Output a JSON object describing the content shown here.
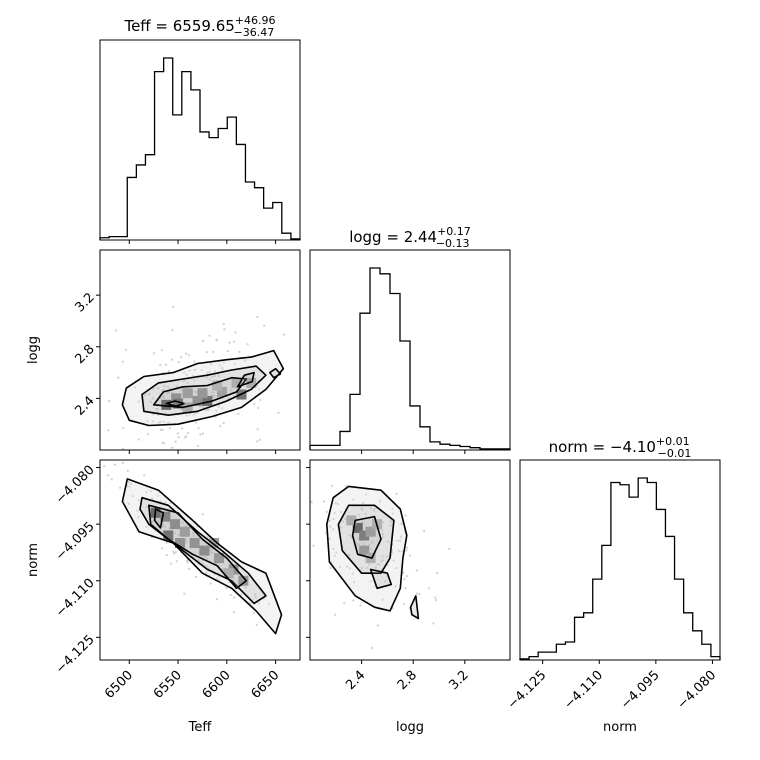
{
  "chart_data": {
    "type": "corner",
    "parameters": [
      {
        "name": "Teff",
        "label": "Teff",
        "median": "6559.65",
        "plus": "+46.96",
        "minus": "−36.47",
        "range": [
          6470,
          6675
        ],
        "ticks": [
          6500,
          6550,
          6600,
          6650
        ],
        "tick_labels": [
          "6500",
          "6550",
          "6600",
          "6650"
        ]
      },
      {
        "name": "logg",
        "label": "logg",
        "median": "2.44",
        "plus": "+0.17",
        "minus": "−0.13",
        "range": [
          2.0,
          3.55
        ],
        "ticks": [
          2.4,
          2.8,
          3.2
        ],
        "tick_labels": [
          "2.4",
          "2.8",
          "3.2"
        ]
      },
      {
        "name": "norm",
        "label": "norm",
        "median": "−4.10",
        "plus": "+0.01",
        "minus": "−0.01",
        "range": [
          -4.131,
          -4.078
        ],
        "ticks": [
          -4.125,
          -4.11,
          -4.095,
          -4.08
        ],
        "tick_labels": [
          "−4.125",
          "−4.110",
          "−4.095",
          "−4.080"
        ]
      }
    ],
    "histograms": {
      "Teff": [
        2,
        3,
        3,
        55,
        66,
        75,
        148,
        160,
        110,
        148,
        132,
        95,
        90,
        98,
        108,
        84,
        51,
        46,
        28,
        33,
        6,
        1
      ],
      "logg": [
        4,
        4,
        4,
        16,
        48,
        118,
        157,
        152,
        135,
        94,
        38,
        20,
        7,
        5,
        4,
        3,
        2,
        1,
        1,
        1
      ],
      "norm": [
        1,
        3,
        7,
        7,
        14,
        16,
        38,
        42,
        72,
        102,
        158,
        156,
        145,
        162,
        158,
        134,
        110,
        72,
        42,
        26,
        14,
        3
      ]
    },
    "contours": {
      "Teff_logg": [
        [
          [
            6500,
            2.23
          ],
          [
            6520,
            2.19
          ],
          [
            6550,
            2.2
          ],
          [
            6585,
            2.26
          ],
          [
            6615,
            2.33
          ],
          [
            6640,
            2.47
          ],
          [
            6658,
            2.63
          ],
          [
            6648,
            2.77
          ],
          [
            6625,
            2.72
          ],
          [
            6600,
            2.7
          ],
          [
            6570,
            2.67
          ],
          [
            6545,
            2.6
          ],
          [
            6515,
            2.57
          ],
          [
            6497,
            2.48
          ],
          [
            6493,
            2.35
          ],
          [
            6500,
            2.23
          ]
        ],
        [
          [
            6515,
            2.3
          ],
          [
            6540,
            2.27
          ],
          [
            6570,
            2.3
          ],
          [
            6600,
            2.38
          ],
          [
            6625,
            2.47
          ],
          [
            6640,
            2.58
          ],
          [
            6630,
            2.65
          ],
          [
            6605,
            2.62
          ],
          [
            6580,
            2.58
          ],
          [
            6555,
            2.55
          ],
          [
            6530,
            2.52
          ],
          [
            6513,
            2.43
          ],
          [
            6515,
            2.3
          ]
        ],
        [
          [
            6525,
            2.35
          ],
          [
            6555,
            2.33
          ],
          [
            6585,
            2.38
          ],
          [
            6610,
            2.45
          ],
          [
            6620,
            2.55
          ],
          [
            6605,
            2.56
          ],
          [
            6580,
            2.5
          ],
          [
            6555,
            2.49
          ],
          [
            6535,
            2.45
          ],
          [
            6525,
            2.35
          ]
        ],
        [
          [
            6538,
            2.36
          ],
          [
            6548,
            2.34
          ],
          [
            6556,
            2.36
          ],
          [
            6547,
            2.38
          ],
          [
            6538,
            2.36
          ]
        ],
        [
          [
            6611,
            2.49
          ],
          [
            6626,
            2.53
          ],
          [
            6628,
            2.6
          ],
          [
            6618,
            2.58
          ],
          [
            6611,
            2.49
          ]
        ],
        [
          [
            6648,
            2.56
          ],
          [
            6655,
            2.59
          ],
          [
            6650,
            2.63
          ],
          [
            6644,
            2.6
          ],
          [
            6648,
            2.56
          ]
        ]
      ],
      "Teff_norm": [
        [
          [
            6498,
            -4.083
          ],
          [
            6530,
            -4.086
          ],
          [
            6565,
            -4.094
          ],
          [
            6590,
            -4.1
          ],
          [
            6615,
            -4.105
          ],
          [
            6640,
            -4.108
          ],
          [
            6656,
            -4.119
          ],
          [
            6650,
            -4.124
          ],
          [
            6630,
            -4.118
          ],
          [
            6605,
            -4.112
          ],
          [
            6575,
            -4.108
          ],
          [
            6545,
            -4.1
          ],
          [
            6510,
            -4.097
          ],
          [
            6493,
            -4.089
          ],
          [
            6498,
            -4.083
          ]
        ],
        [
          [
            6513,
            -4.088
          ],
          [
            6540,
            -4.09
          ],
          [
            6570,
            -4.097
          ],
          [
            6595,
            -4.102
          ],
          [
            6622,
            -4.108
          ],
          [
            6640,
            -4.114
          ],
          [
            6628,
            -4.116
          ],
          [
            6605,
            -4.11
          ],
          [
            6580,
            -4.107
          ],
          [
            6550,
            -4.101
          ],
          [
            6520,
            -4.095
          ],
          [
            6511,
            -4.091
          ],
          [
            6513,
            -4.088
          ]
        ],
        [
          [
            6520,
            -4.09
          ],
          [
            6550,
            -4.092
          ],
          [
            6575,
            -4.099
          ],
          [
            6600,
            -4.104
          ],
          [
            6620,
            -4.11
          ],
          [
            6610,
            -4.112
          ],
          [
            6590,
            -4.106
          ],
          [
            6565,
            -4.103
          ],
          [
            6540,
            -4.099
          ],
          [
            6522,
            -4.095
          ],
          [
            6520,
            -4.09
          ]
        ],
        [
          [
            6527,
            -4.091
          ],
          [
            6535,
            -4.092
          ],
          [
            6532,
            -4.096
          ],
          [
            6526,
            -4.094
          ],
          [
            6527,
            -4.091
          ]
        ]
      ],
      "logg_norm": [
        [
          [
            2.3,
            -4.085
          ],
          [
            2.55,
            -4.086
          ],
          [
            2.7,
            -4.091
          ],
          [
            2.75,
            -4.098
          ],
          [
            2.72,
            -4.104
          ],
          [
            2.7,
            -4.112
          ],
          [
            2.62,
            -4.118
          ],
          [
            2.5,
            -4.117
          ],
          [
            2.35,
            -4.114
          ],
          [
            2.15,
            -4.105
          ],
          [
            2.13,
            -4.095
          ],
          [
            2.18,
            -4.088
          ],
          [
            2.3,
            -4.085
          ]
        ],
        [
          [
            2.3,
            -4.09
          ],
          [
            2.5,
            -4.09
          ],
          [
            2.65,
            -4.094
          ],
          [
            2.62,
            -4.104
          ],
          [
            2.55,
            -4.108
          ],
          [
            2.4,
            -4.108
          ],
          [
            2.25,
            -4.102
          ],
          [
            2.22,
            -4.095
          ],
          [
            2.3,
            -4.09
          ]
        ],
        [
          [
            2.35,
            -4.094
          ],
          [
            2.5,
            -4.093
          ],
          [
            2.55,
            -4.099
          ],
          [
            2.48,
            -4.104
          ],
          [
            2.37,
            -4.103
          ],
          [
            2.33,
            -4.098
          ],
          [
            2.35,
            -4.094
          ]
        ],
        [
          [
            2.47,
            -4.107
          ],
          [
            2.6,
            -4.108
          ],
          [
            2.63,
            -4.111
          ],
          [
            2.52,
            -4.112
          ],
          [
            2.47,
            -4.107
          ]
        ],
        [
          [
            2.78,
            -4.117
          ],
          [
            2.82,
            -4.114
          ],
          [
            2.84,
            -4.12
          ],
          [
            2.79,
            -4.119
          ],
          [
            2.78,
            -4.117
          ]
        ]
      ]
    },
    "density_cells": {
      "Teff_logg": [
        [
          6548,
          2.4,
          0.55
        ],
        [
          6560,
          2.44,
          0.45
        ],
        [
          6538,
          2.35,
          0.9
        ],
        [
          6550,
          2.36,
          0.8
        ],
        [
          6570,
          2.38,
          0.55
        ],
        [
          6580,
          2.38,
          0.85
        ],
        [
          6595,
          2.45,
          0.4
        ],
        [
          6615,
          2.43,
          0.75
        ],
        [
          6575,
          2.44,
          0.5
        ],
        [
          6560,
          2.33,
          0.35
        ],
        [
          6610,
          2.52,
          0.3
        ],
        [
          6625,
          2.52,
          0.35
        ],
        [
          6590,
          2.5,
          0.25
        ]
      ],
      "Teff_norm": [
        [
          6527,
          -4.092,
          0.95
        ],
        [
          6537,
          -4.093,
          0.7
        ],
        [
          6547,
          -4.095,
          0.6
        ],
        [
          6557,
          -4.097,
          0.45
        ],
        [
          6567,
          -4.1,
          0.55
        ],
        [
          6577,
          -4.102,
          0.6
        ],
        [
          6592,
          -4.104,
          0.5
        ],
        [
          6607,
          -4.107,
          0.55
        ],
        [
          6617,
          -4.11,
          0.5
        ],
        [
          6540,
          -4.098,
          0.85
        ],
        [
          6552,
          -4.1,
          0.55
        ],
        [
          6587,
          -4.1,
          0.35
        ],
        [
          6602,
          -4.108,
          0.3
        ]
      ],
      "logg_norm": [
        [
          2.37,
          -4.096,
          0.95
        ],
        [
          2.42,
          -4.098,
          0.75
        ],
        [
          2.47,
          -4.097,
          0.45
        ],
        [
          2.42,
          -4.102,
          0.5
        ],
        [
          2.52,
          -4.095,
          0.3
        ],
        [
          2.32,
          -4.094,
          0.35
        ],
        [
          2.47,
          -4.104,
          0.3
        ]
      ]
    },
    "scatter_seed": 7
  }
}
